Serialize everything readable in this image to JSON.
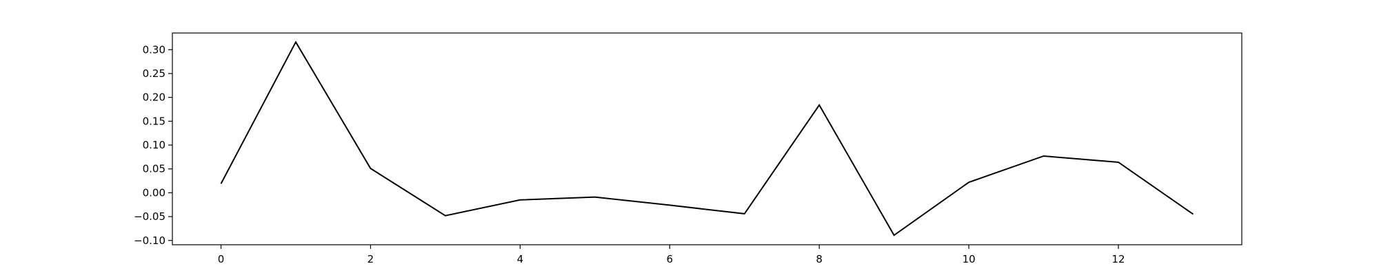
{
  "chart_data": {
    "type": "line",
    "x": [
      0,
      1,
      2,
      3,
      4,
      5,
      6,
      7,
      8,
      9,
      10,
      11,
      12,
      13
    ],
    "series": [
      {
        "values": [
          0.019,
          0.316,
          0.051,
          -0.048,
          -0.015,
          -0.009,
          -0.026,
          -0.044,
          0.184,
          -0.089,
          0.022,
          0.077,
          0.064,
          -0.045
        ],
        "color": "#000000"
      }
    ],
    "xlim": [
      -0.65,
      13.65
    ],
    "ylim": [
      -0.109,
      0.335
    ],
    "xticks": [
      0,
      2,
      4,
      6,
      8,
      10,
      12
    ],
    "yticks": [
      -0.1,
      -0.05,
      0.0,
      0.05,
      0.1,
      0.15,
      0.2,
      0.25,
      0.3
    ],
    "xtick_labels": [
      "0",
      "2",
      "4",
      "6",
      "8",
      "10",
      "12"
    ],
    "ytick_labels": [
      "−0.10",
      "−0.05",
      "0.00",
      "0.05",
      "0.10",
      "0.15",
      "0.20",
      "0.25",
      "0.30"
    ],
    "grid": false,
    "legend": "none"
  }
}
